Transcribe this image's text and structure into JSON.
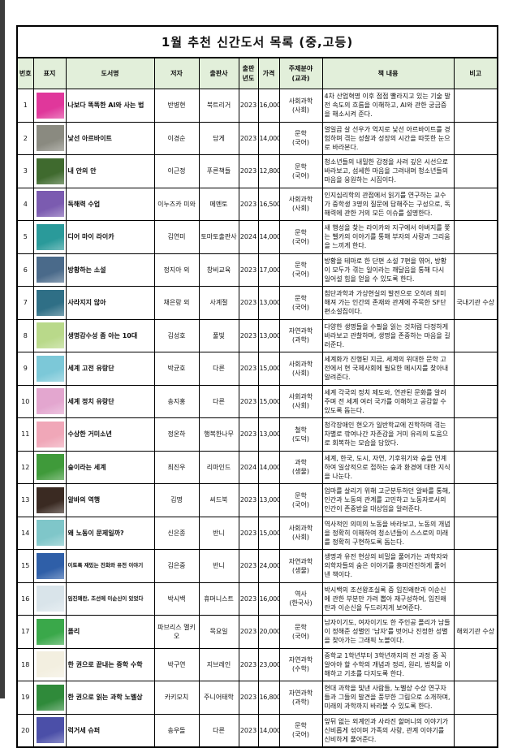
{
  "title": "1월 추천 신간도서 목록 (중,고등)",
  "headers": {
    "no": "번호",
    "cover": "표지",
    "book": "도서명",
    "author": "저자",
    "publisher": "출판사",
    "year_line1": "출판",
    "year_line2": "년도",
    "price": "가격",
    "subject_line1": "주제분야",
    "subject_line2": "(교과)",
    "content": "책 내용",
    "note": "비고"
  },
  "header_bg": "#e2efda",
  "books": [
    {
      "no": "1",
      "title": "나보다 똑똑한 AI와 사는 법",
      "author": "반병현",
      "publisher": "북트리거",
      "year": "2023",
      "price": "16,000",
      "subject": "사회과학",
      "subject_sub": "(사회)",
      "content": "4차 산업혁명 이후 점점 빨라지고 있는 기술 발전 속도의 흐름을 이해하고, AI와 관한 궁금증을 해소시켜 준다.",
      "note": "",
      "cover_color": "#e0379b"
    },
    {
      "no": "2",
      "title": "낯선 아르바이트",
      "author": "이경순",
      "publisher": "담게",
      "year": "2023",
      "price": "14,000",
      "subject": "문학",
      "subject_sub": "(국어)",
      "content": "열일곱 살 선우가 억지로 낯선 아르바이트를 경험하며 겪는 성찰과 성장의 시간을 따뜻한 눈으로 바라본다.",
      "note": "",
      "cover_color": "#8a8a80"
    },
    {
      "no": "3",
      "title": "내 안의 안",
      "author": "이근정",
      "publisher": "푸른책들",
      "year": "2023",
      "price": "12,800",
      "subject": "문학",
      "subject_sub": "(국어)",
      "content": "청소년들의 내밀한 감정을 사려 깊은 시선으로 바라보고, 섬세한 마음을 그려내며 청소년들의 마음을 응원하는 시집이다.",
      "note": "",
      "cover_color": "#3f6a2e"
    },
    {
      "no": "4",
      "title": "독해력 수업",
      "author": "이누즈카 미와",
      "publisher": "메멘토",
      "year": "2023",
      "price": "16,500",
      "subject": "사회과학",
      "subject_sub": "(사회)",
      "content": "인지심리학의 관점에서 읽기를 연구하는 교수가 중학생 3명의 질문에 답해주는 구성으로, 독해력에 관한 거의 모든 이슈를 설명한다.",
      "note": "",
      "cover_color": "#7b5bb0"
    },
    {
      "no": "5",
      "title": "디어 마이 라이카",
      "author": "김연미",
      "publisher": "토마토출판사",
      "year": "2024",
      "price": "14,000",
      "subject": "문학",
      "subject_sub": "(국어)",
      "content": "새 행성을 찾는 라이카와 지구에서 아버지를 쫓는 벨카의 이야기를 통해 부자의 사랑과 그리움을 느끼게 한다.",
      "note": "",
      "cover_color": "#2a9a9a"
    },
    {
      "no": "6",
      "title": "방황하는 소설",
      "author": "정지아 외",
      "publisher": "창비교육",
      "year": "2023",
      "price": "17,000",
      "subject": "문학",
      "subject_sub": "(국어)",
      "content": "방황을 테마로 한 단편 소설 7편을 엮어, 방황이 모두가 겪는 일이라는 깨달음을 통해 다시 일어설 힘을 얻을 수 있도록 한다.",
      "note": "",
      "cover_color": "#4a6a8a"
    },
    {
      "no": "7",
      "title": "사라지지 않아",
      "author": "채은랑 외",
      "publisher": "사계절",
      "year": "2023",
      "price": "13,000",
      "subject": "문학",
      "subject_sub": "(국어)",
      "content": "첨단과학과 가상현실의 발전으로 오히려 희미해져 가는 인간의 존재와 관계에 주목한 SF단편소설집이다.",
      "note": "국내기관 수상",
      "cover_color": "#2f6f86"
    },
    {
      "no": "8",
      "title": "생명감수성 좀 아는 10대",
      "author": "김성호",
      "publisher": "풀빛",
      "year": "2023",
      "price": "13,000",
      "subject": "자연과학",
      "subject_sub": "(과학)",
      "content": "다양한 생명들을 수필을 읽는 것처럼 다정하게 바라보고 관찰하며, 생명을 존중하는 마음을 길러준다.",
      "note": "",
      "cover_color": "#b9d98a"
    },
    {
      "no": "9",
      "title": "세계 고전 유랑단",
      "author": "박균호",
      "publisher": "다른",
      "year": "2023",
      "price": "15,000",
      "subject": "사회과학",
      "subject_sub": "(사회)",
      "content": "세계화가 진행된 지금, 세계의 위대한 문학 고전에서 현 국제사회에 필요한 메시지를 찾아내 알려준다.",
      "note": "",
      "cover_color": "#7cc8d8"
    },
    {
      "no": "10",
      "title": "세계 정치 유랑단",
      "author": "송지홍",
      "publisher": "다른",
      "year": "2023",
      "price": "15,000",
      "subject": "사회과학",
      "subject_sub": "(사회)",
      "content": "세계 각국의 정치 제도와, 연관된 문화를 알려주며 전 세계 여러 국가를 이해하고 공감할 수 있도록 돕는다.",
      "note": "",
      "cover_color": "#e3a6cf"
    },
    {
      "no": "11",
      "title": "수상한 거미소년",
      "author": "정온하",
      "publisher": "행복한나무",
      "year": "2023",
      "price": "13,000",
      "subject": "철학",
      "subject_sub": "(도덕)",
      "content": "청각장애인 현오가 일반학교에 진학하며 겪는 차별로 깎여나간 자존감을 거미 유리의 도움으로 회복하는 모습을 담았다.",
      "note": "",
      "cover_color": "#f0a7b8"
    },
    {
      "no": "12",
      "title": "숲이라는 세계",
      "author": "최진우",
      "publisher": "리마인드",
      "year": "2024",
      "price": "14,000",
      "subject": "과학",
      "subject_sub": "(생물)",
      "content": "세계, 한국, 도시, 자연, 기후위기와 숲을 연계하여 일상적으로 접하는 숲과 환경에 대한 지식을 나눈다.",
      "note": "",
      "cover_color": "#3f9a3a"
    },
    {
      "no": "13",
      "title": "알바의 역행",
      "author": "김명",
      "publisher": "씨드북",
      "year": "2023",
      "price": "13,000",
      "subject": "문학",
      "subject_sub": "(국어)",
      "content": "엄마를 살리기 위해 고군분투하던 알바를 통해, 인간과 노동의 관계를 고민하고 노동자로서의 인간이 존중받을 대상임을 알려준다.",
      "note": "",
      "cover_color": "#3a2a22"
    },
    {
      "no": "14",
      "title": "왜 노동이 문제일까?",
      "author": "신은종",
      "publisher": "반니",
      "year": "2023",
      "price": "15,000",
      "subject": "사회과학",
      "subject_sub": "(사회)",
      "content": "역사적인 의미의 노동을 바라보고, 노동의 개념을 정확히 이해하여 청소년들이 스스로의 미래를 정확히 구현하도록 돕는다.",
      "note": "",
      "cover_color": "#7fc6c9"
    },
    {
      "no": "15",
      "title": "이토록 재밌는 진화와 유전 이야기",
      "author": "김은중",
      "publisher": "반니",
      "year": "2023",
      "price": "24,000",
      "subject": "자연과학",
      "subject_sub": "(생물)",
      "content": "생명과 유전 현상의 비밀을 풀어가는 과학자와 의학자들의 숨은 이야기를 흥미진진하게 풀어낸 책이다.",
      "note": "",
      "cover_color": "#2f5fa8",
      "small": true
    },
    {
      "no": "16",
      "title": "임진왜란, 조선에 이순신이 있었다",
      "author": "박시백",
      "publisher": "휴머니스트",
      "year": "2023",
      "price": "16,000",
      "subject": "역사",
      "subject_sub": "(한국사)",
      "content": "박시백의 조선왕조실록 중 임진왜란과 이순신에 관한 부분만 가려 뽑아 재구성하여, 임진왜란과 이순신을 두드러지게 보여준다.",
      "note": "",
      "cover_color": "#d9e4ea",
      "small": true
    },
    {
      "no": "17",
      "title": "폴리",
      "author": "파브리스 멜키오",
      "publisher": "목요일",
      "year": "2023",
      "price": "20,000",
      "subject": "문학",
      "subject_sub": "(국어)",
      "content": "남자이기도, 여자이기도 한 주인공 폴리가 남들이 정해준 성별인 '남자'를 벗어나 진정한 성별을 찾아가는 그래픽 노블이다.",
      "note": "해외기관 수상",
      "cover_color": "#3aa84a"
    },
    {
      "no": "18",
      "title": "한 권으로 끝내는 중학 수학",
      "author": "박구연",
      "publisher": "지브레인",
      "year": "2023",
      "price": "23,000",
      "subject": "자연과학",
      "subject_sub": "(수학)",
      "content": "중학교 1학년부터 3학년까지의 전 과정 중 꼭 알아야 할 수학의 개념과 정리, 원리, 법칙을 이해하고 기초를 다지도록 한다.",
      "note": "",
      "cover_color": "#f3efe0"
    },
    {
      "no": "19",
      "title": "한 권으로 읽는 과학 노벨상",
      "author": "카키모치",
      "publisher": "주니어태학",
      "year": "2023",
      "price": "16,800",
      "subject": "자연과학",
      "subject_sub": "(과학)",
      "content": "현대 과학을 빛낸 사람들, 노벨상 수상 연구자들과 그들의 발견을 풍부한 그림으로 소개하며, 미래의 과학까지 바라볼 수 있도록 한다.",
      "note": "",
      "cover_color": "#2f8a3a"
    },
    {
      "no": "20",
      "title": "럭거세 슈퍼",
      "author": "송우돌",
      "publisher": "다른",
      "year": "2023",
      "price": "14,000",
      "subject": "문학",
      "subject_sub": "(국어)",
      "content": "앞뒤 없는 외계인과 사라진 할머니의 이야기가 신비롭게 섞이며 가족의 사랑, 관계 이야기를 신비하게 풀어준다.",
      "note": "",
      "cover_color": "#4b4fa8"
    }
  ]
}
